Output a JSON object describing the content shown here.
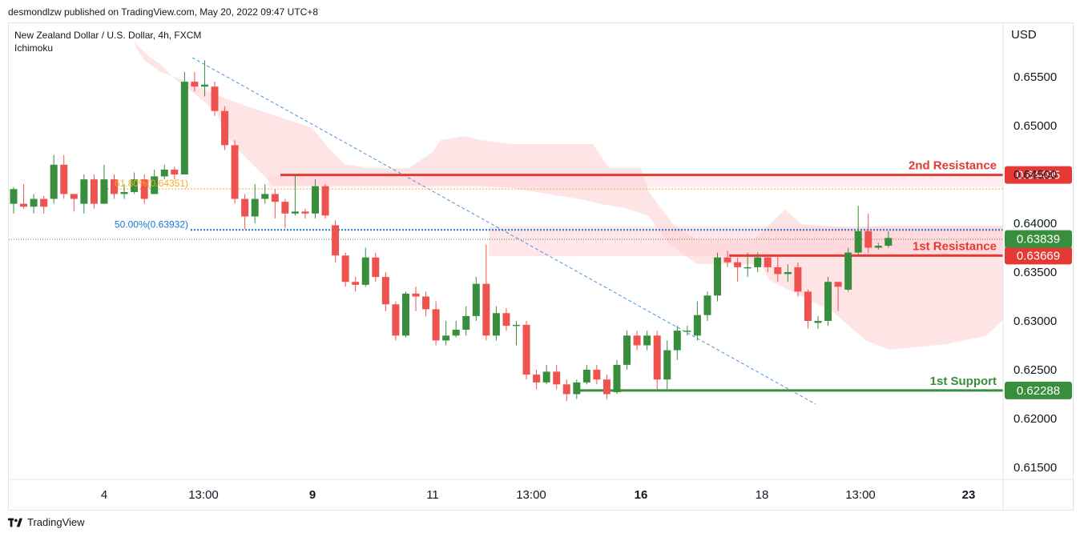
{
  "header": {
    "published_by": "desmondlzw published on TradingView.com, May 20, 2022 09:47 UTC+8"
  },
  "legend": {
    "symbol": "New Zealand Dollar / U.S. Dollar, 4h, FXCM",
    "indicator": "Ichimoku"
  },
  "footer": {
    "brand": "TradingView"
  },
  "colors": {
    "up": "#388e3c",
    "down": "#ef5350",
    "resistance": "#e53935",
    "support": "#388e3c",
    "cloud": "#ffcdd2",
    "fib618": "#f9a825",
    "fib50": "#1976d2",
    "trendline": "#4a90e2"
  },
  "chart_data": {
    "type": "candlestick",
    "currency": "USD",
    "y_ticks": [
      "0.65500",
      "0.65000",
      "0.64500",
      "0.64000",
      "0.63500",
      "0.63000",
      "0.62500",
      "0.62000",
      "0.61500"
    ],
    "x_ticks": [
      {
        "label": "4",
        "bold": false
      },
      {
        "label": "13:00",
        "bold": false
      },
      {
        "label": "9",
        "bold": true
      },
      {
        "label": "11",
        "bold": false
      },
      {
        "label": "13:00",
        "bold": false
      },
      {
        "label": "16",
        "bold": true
      },
      {
        "label": "18",
        "bold": false
      },
      {
        "label": "13:00",
        "bold": false
      },
      {
        "label": "23",
        "bold": true
      }
    ],
    "levels": [
      {
        "name": "2nd Resistance",
        "price": 0.64495,
        "label": "0.64495",
        "kind": "resistance"
      },
      {
        "name": "1st Resistance",
        "price": 0.63669,
        "label": "0.63669",
        "kind": "resistance"
      },
      {
        "name": "1st Support",
        "price": 0.62288,
        "label": "0.62288",
        "kind": "support"
      }
    ],
    "current_price": {
      "price": 0.63839,
      "label": "0.63839"
    },
    "fibonacci": [
      {
        "label": "61.80%(0.64351)",
        "price": 0.64351
      },
      {
        "label": "50.00%(0.63932)",
        "price": 0.63932
      }
    ],
    "candles": [
      [
        0.642,
        0.6435,
        0.641,
        0.6437
      ],
      [
        0.642,
        0.6417,
        0.6415,
        0.644
      ],
      [
        0.6417,
        0.6425,
        0.641,
        0.643
      ],
      [
        0.6425,
        0.6417,
        0.641,
        0.6428
      ],
      [
        0.6425,
        0.646,
        0.642,
        0.647
      ],
      [
        0.646,
        0.643,
        0.6425,
        0.647
      ],
      [
        0.643,
        0.6425,
        0.6412,
        0.643
      ],
      [
        0.642,
        0.6445,
        0.641,
        0.645
      ],
      [
        0.6445,
        0.642,
        0.6415,
        0.645
      ],
      [
        0.642,
        0.6445,
        0.642,
        0.646
      ],
      [
        0.6445,
        0.643,
        0.6425,
        0.645
      ],
      [
        0.643,
        0.6432,
        0.6425,
        0.644
      ],
      [
        0.6432,
        0.6445,
        0.643,
        0.6452
      ],
      [
        0.6445,
        0.6425,
        0.642,
        0.645
      ],
      [
        0.643,
        0.6448,
        0.643,
        0.6455
      ],
      [
        0.6448,
        0.6455,
        0.6445,
        0.646
      ],
      [
        0.6455,
        0.645,
        0.6445,
        0.6458
      ],
      [
        0.645,
        0.6545,
        0.645,
        0.6555
      ],
      [
        0.6545,
        0.654,
        0.6535,
        0.6555
      ],
      [
        0.654,
        0.6542,
        0.653,
        0.6567
      ],
      [
        0.654,
        0.6515,
        0.651,
        0.6545
      ],
      [
        0.6515,
        0.648,
        0.6475,
        0.652
      ],
      [
        0.648,
        0.6425,
        0.642,
        0.6485
      ],
      [
        0.6425,
        0.6407,
        0.6394,
        0.643
      ],
      [
        0.6407,
        0.6425,
        0.64,
        0.644
      ],
      [
        0.6425,
        0.643,
        0.642,
        0.644
      ],
      [
        0.643,
        0.6422,
        0.6405,
        0.6435
      ],
      [
        0.6422,
        0.641,
        0.6395,
        0.6425
      ],
      [
        0.641,
        0.6412,
        0.6408,
        0.645
      ],
      [
        0.6412,
        0.641,
        0.6405,
        0.6415
      ],
      [
        0.641,
        0.6438,
        0.6405,
        0.6445
      ],
      [
        0.6438,
        0.6408,
        0.6405,
        0.644
      ],
      [
        0.6398,
        0.6367,
        0.636,
        0.6403
      ],
      [
        0.6367,
        0.634,
        0.6335,
        0.637
      ],
      [
        0.634,
        0.6337,
        0.633,
        0.6345
      ],
      [
        0.6337,
        0.6365,
        0.6335,
        0.6375
      ],
      [
        0.6365,
        0.6345,
        0.634,
        0.637
      ],
      [
        0.6345,
        0.6317,
        0.631,
        0.635
      ],
      [
        0.6317,
        0.6285,
        0.628,
        0.632
      ],
      [
        0.6285,
        0.6328,
        0.6283,
        0.633
      ],
      [
        0.6328,
        0.6325,
        0.631,
        0.6335
      ],
      [
        0.6325,
        0.6312,
        0.6305,
        0.633
      ],
      [
        0.6312,
        0.628,
        0.6275,
        0.632
      ],
      [
        0.628,
        0.6285,
        0.6275,
        0.63
      ],
      [
        0.6285,
        0.6291,
        0.6283,
        0.63
      ],
      [
        0.6291,
        0.6305,
        0.6285,
        0.6315
      ],
      [
        0.6305,
        0.6338,
        0.63,
        0.6345
      ],
      [
        0.6338,
        0.6285,
        0.628,
        0.6378
      ],
      [
        0.6285,
        0.6308,
        0.628,
        0.6315
      ],
      [
        0.6308,
        0.6295,
        0.629,
        0.6313
      ],
      [
        0.6295,
        0.6296,
        0.6275,
        0.63
      ],
      [
        0.6296,
        0.6245,
        0.624,
        0.63
      ],
      [
        0.6245,
        0.6237,
        0.623,
        0.625
      ],
      [
        0.6237,
        0.6248,
        0.6235,
        0.6255
      ],
      [
        0.6248,
        0.6235,
        0.623,
        0.6255
      ],
      [
        0.6235,
        0.6225,
        0.6218,
        0.624
      ],
      [
        0.6225,
        0.6237,
        0.622,
        0.624
      ],
      [
        0.6237,
        0.625,
        0.6235,
        0.6255
      ],
      [
        0.625,
        0.624,
        0.6235,
        0.6255
      ],
      [
        0.624,
        0.6225,
        0.622,
        0.6245
      ],
      [
        0.6227,
        0.6255,
        0.6225,
        0.626
      ],
      [
        0.6255,
        0.6285,
        0.625,
        0.629
      ],
      [
        0.6285,
        0.6275,
        0.627,
        0.629
      ],
      [
        0.6275,
        0.6285,
        0.627,
        0.629
      ],
      [
        0.6285,
        0.624,
        0.623,
        0.629
      ],
      [
        0.624,
        0.627,
        0.623,
        0.628
      ],
      [
        0.627,
        0.629,
        0.626,
        0.6295
      ],
      [
        0.629,
        0.629,
        0.6285,
        0.6295
      ],
      [
        0.6285,
        0.6306,
        0.628,
        0.632
      ],
      [
        0.6306,
        0.6326,
        0.63,
        0.633
      ],
      [
        0.6326,
        0.6365,
        0.632,
        0.637
      ],
      [
        0.6365,
        0.636,
        0.6355,
        0.6372
      ],
      [
        0.636,
        0.6355,
        0.634,
        0.6365
      ],
      [
        0.6355,
        0.6355,
        0.6345,
        0.637
      ],
      [
        0.6355,
        0.6365,
        0.635,
        0.637
      ],
      [
        0.6365,
        0.6355,
        0.635,
        0.6368
      ],
      [
        0.6355,
        0.6348,
        0.634,
        0.6368
      ],
      [
        0.6348,
        0.635,
        0.634,
        0.6358
      ],
      [
        0.6355,
        0.633,
        0.6325,
        0.636
      ],
      [
        0.633,
        0.63,
        0.6292,
        0.6332
      ],
      [
        0.6298,
        0.63,
        0.6292,
        0.6305
      ],
      [
        0.63,
        0.634,
        0.6295,
        0.6345
      ],
      [
        0.634,
        0.6335,
        0.631,
        0.634
      ],
      [
        0.6332,
        0.637,
        0.633,
        0.6375
      ],
      [
        0.637,
        0.6392,
        0.6368,
        0.6418
      ],
      [
        0.6392,
        0.6375,
        0.637,
        0.641
      ],
      [
        0.6375,
        0.6377,
        0.6373,
        0.638
      ],
      [
        0.6377,
        0.6385,
        0.6375,
        0.6392
      ]
    ]
  }
}
